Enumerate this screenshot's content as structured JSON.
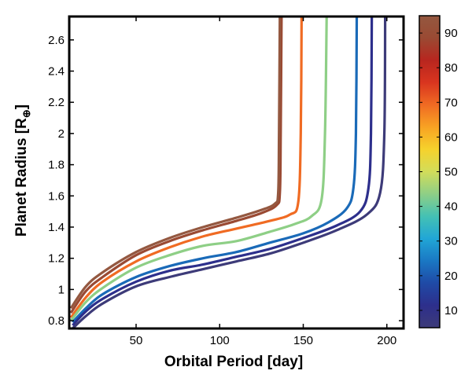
{
  "chart_data": {
    "type": "line",
    "title": "",
    "xlabel": "Orbital Period [day]",
    "ylabel": "Planet Radius [R",
    "ylabel_subscript": "⊕",
    "ylabel_close": "]",
    "xlim": [
      10,
      210
    ],
    "ylim": [
      0.75,
      2.75
    ],
    "xticks": [
      50,
      100,
      150,
      200
    ],
    "yticks": [
      0.8,
      1.0,
      1.2,
      1.4,
      1.6,
      1.8,
      2.0,
      2.2,
      2.4,
      2.6
    ],
    "ytick_labels": [
      "0.8",
      "1",
      "1.2",
      "1.4",
      "1.6",
      "1.8",
      "2",
      "2.2",
      "2.4",
      "2.6"
    ],
    "grid": false,
    "colorbar": {
      "range": [
        5,
        95
      ],
      "ticks": [
        10,
        20,
        30,
        40,
        50,
        60,
        70,
        80,
        90
      ],
      "colormap": [
        "#3d3b79",
        "#2d2f8c",
        "#1f4aa6",
        "#1a78c4",
        "#21a6d6",
        "#44c1b4",
        "#8ecf86",
        "#d2dd5a",
        "#f6d22c",
        "#f8a323",
        "#f06b23",
        "#d9351f",
        "#b8261f",
        "#9a4a33",
        "#945840"
      ]
    },
    "series": [
      {
        "level": 90,
        "color": "#9a4a33",
        "x": [
          11,
          20,
          30,
          50,
          70,
          90,
          110,
          125,
          134,
          136,
          136.5,
          137
        ],
        "y": [
          0.85,
          0.99,
          1.08,
          1.22,
          1.31,
          1.38,
          1.44,
          1.49,
          1.54,
          1.62,
          2.0,
          2.75
        ]
      },
      {
        "level": 95,
        "color": "#945840",
        "x": [
          11,
          20,
          30,
          50,
          70,
          90,
          110,
          125,
          133,
          135,
          135.5,
          136
        ],
        "y": [
          0.88,
          1.02,
          1.11,
          1.24,
          1.33,
          1.4,
          1.46,
          1.51,
          1.55,
          1.62,
          2.0,
          2.75
        ]
      },
      {
        "level": 70,
        "color": "#f06b23",
        "x": [
          11,
          20,
          30,
          50,
          70,
          90,
          110,
          130,
          142,
          147,
          148.5,
          149
        ],
        "y": [
          0.82,
          0.95,
          1.05,
          1.18,
          1.27,
          1.34,
          1.39,
          1.44,
          1.48,
          1.56,
          2.0,
          2.75
        ]
      },
      {
        "level": 50,
        "color": "#8ecf86",
        "x": [
          11,
          20,
          30,
          50,
          70,
          90,
          110,
          130,
          145,
          155,
          161,
          163,
          164
        ],
        "y": [
          0.8,
          0.92,
          1.01,
          1.14,
          1.22,
          1.28,
          1.31,
          1.37,
          1.42,
          1.47,
          1.58,
          2.0,
          2.75
        ]
      },
      {
        "level": 25,
        "color": "#1a6ab8",
        "x": [
          12,
          20,
          30,
          50,
          70,
          90,
          110,
          130,
          150,
          165,
          176,
          180,
          181.5,
          182
        ],
        "y": [
          0.79,
          0.88,
          0.97,
          1.08,
          1.15,
          1.2,
          1.24,
          1.3,
          1.36,
          1.43,
          1.52,
          1.65,
          2.0,
          2.75
        ]
      },
      {
        "level": 15,
        "color": "#2d2f8c",
        "x": [
          12,
          20,
          30,
          50,
          70,
          90,
          110,
          130,
          150,
          170,
          184,
          189,
          190.5,
          191
        ],
        "y": [
          0.77,
          0.86,
          0.94,
          1.05,
          1.12,
          1.16,
          1.21,
          1.26,
          1.33,
          1.41,
          1.5,
          1.65,
          2.0,
          2.75
        ]
      },
      {
        "level": 7,
        "color": "#3d3b79",
        "x": [
          12,
          20,
          30,
          50,
          70,
          90,
          110,
          130,
          150,
          170,
          188,
          196,
          198.5,
          199
        ],
        "y": [
          0.75,
          0.83,
          0.91,
          1.02,
          1.08,
          1.13,
          1.18,
          1.23,
          1.3,
          1.38,
          1.48,
          1.62,
          2.0,
          2.75
        ]
      }
    ]
  }
}
